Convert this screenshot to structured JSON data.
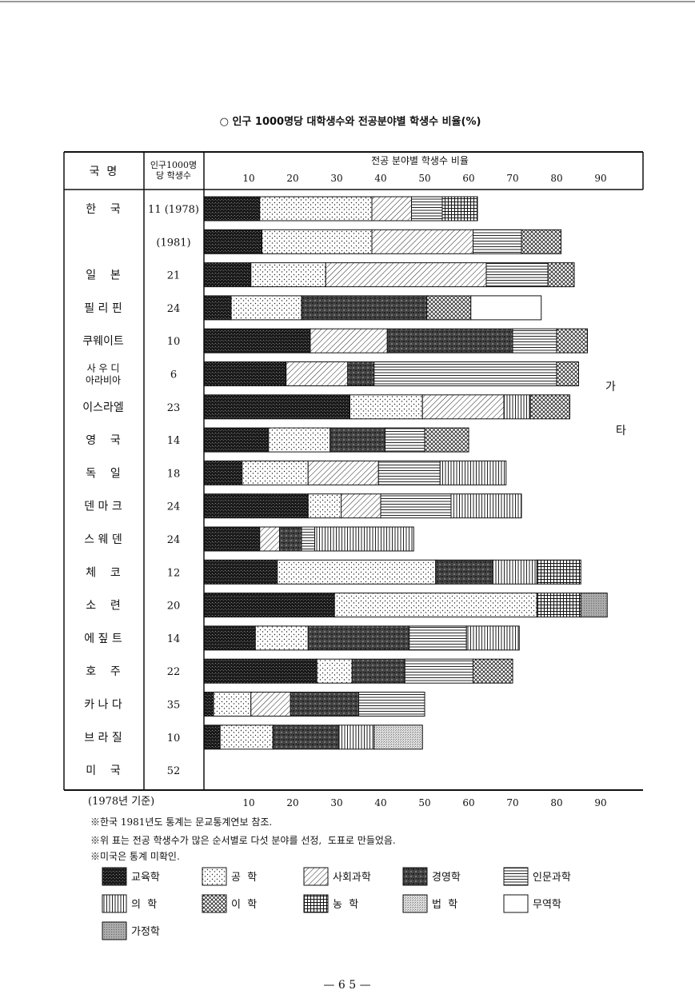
{
  "chart_data": {
    "type": "bar",
    "stacked": true,
    "orientation": "horizontal",
    "title": "○ 인구 1000명당 대학생수와 전공분야별 학생수 비율(%)",
    "header_country": "국  명",
    "header_ratio_line1": "인구1000명",
    "header_ratio_line2": "당 학생수",
    "header_fields": "전공 분야별 학생수 비율",
    "xlim": [
      0,
      93
    ],
    "xticks": [
      10,
      20,
      30,
      40,
      50,
      60,
      70,
      80,
      90
    ],
    "side_label_1": "가",
    "side_label_2": "타",
    "series": [
      {
        "key": "edu",
        "name": "교육학",
        "pattern": "dense"
      },
      {
        "key": "eng",
        "name": "공  학",
        "pattern": "dots"
      },
      {
        "key": "soc",
        "name": "사회과학",
        "pattern": "diag"
      },
      {
        "key": "bus",
        "name": "경영학",
        "pattern": "mottled"
      },
      {
        "key": "hum",
        "name": "인문과학",
        "pattern": "hlines"
      },
      {
        "key": "med",
        "name": "의  학",
        "pattern": "vlines"
      },
      {
        "key": "sci",
        "name": "이  학",
        "pattern": "cross"
      },
      {
        "key": "agr",
        "name": "농  학",
        "pattern": "grid"
      },
      {
        "key": "law",
        "name": "법  학",
        "pattern": "fine"
      },
      {
        "key": "trd",
        "name": "무역학",
        "pattern": "white"
      },
      {
        "key": "home",
        "name": "가정학",
        "pattern": "gray"
      }
    ],
    "rows": [
      {
        "country": "한    국",
        "ratio": "11 (1978)",
        "segments": [
          [
            "edu",
            12.5
          ],
          [
            "eng",
            25.5
          ],
          [
            "soc",
            9
          ],
          [
            "hum",
            7
          ],
          [
            "agr",
            8
          ]
        ]
      },
      {
        "country": "",
        "ratio": "(1981)",
        "segments": [
          [
            "edu",
            13
          ],
          [
            "eng",
            25
          ],
          [
            "soc",
            23
          ],
          [
            "hum",
            11
          ],
          [
            "sci",
            9
          ]
        ]
      },
      {
        "country": "일    본",
        "ratio": "21",
        "segments": [
          [
            "edu",
            10.5
          ],
          [
            "eng",
            17
          ],
          [
            "soc",
            36.5
          ],
          [
            "hum",
            14
          ],
          [
            "sci",
            6
          ]
        ]
      },
      {
        "country": "필 리 핀",
        "ratio": "24",
        "segments": [
          [
            "edu",
            6
          ],
          [
            "eng",
            16
          ],
          [
            "bus",
            28.5
          ],
          [
            "sci",
            10
          ],
          [
            "trd",
            16
          ]
        ]
      },
      {
        "country": "쿠웨이트",
        "ratio": "10",
        "segments": [
          [
            "edu",
            24
          ],
          [
            "soc",
            17.5
          ],
          [
            "bus",
            28.5
          ],
          [
            "hum",
            10
          ],
          [
            "sci",
            7
          ]
        ]
      },
      {
        "country": "사 우 디 아라비아",
        "ratio": "6",
        "segments": [
          [
            "edu",
            18.5
          ],
          [
            "soc",
            14
          ],
          [
            "bus",
            6
          ],
          [
            "hum",
            41.5
          ],
          [
            "sci",
            5
          ]
        ]
      },
      {
        "country": "이스라엘",
        "ratio": "23",
        "segments": [
          [
            "edu",
            33
          ],
          [
            "eng",
            16.5
          ],
          [
            "soc",
            18.5
          ],
          [
            "med",
            6
          ],
          [
            "sci",
            9
          ]
        ]
      },
      {
        "country": "영    국",
        "ratio": "14",
        "segments": [
          [
            "edu",
            14.5
          ],
          [
            "eng",
            14
          ],
          [
            "bus",
            12.5
          ],
          [
            "hum",
            9
          ],
          [
            "sci",
            10
          ]
        ]
      },
      {
        "country": "독    일",
        "ratio": "18",
        "segments": [
          [
            "edu",
            8.5
          ],
          [
            "eng",
            15
          ],
          [
            "soc",
            16
          ],
          [
            "hum",
            14
          ],
          [
            "med",
            15
          ]
        ]
      },
      {
        "country": "덴 마 크",
        "ratio": "24",
        "segments": [
          [
            "edu",
            23.5
          ],
          [
            "eng",
            7.5
          ],
          [
            "soc",
            9
          ],
          [
            "hum",
            16
          ],
          [
            "med",
            16
          ]
        ]
      },
      {
        "country": "스 웨 덴",
        "ratio": "24",
        "segments": [
          [
            "edu",
            12.5
          ],
          [
            "soc",
            4.5
          ],
          [
            "bus",
            5
          ],
          [
            "hum",
            3
          ],
          [
            "med",
            22.5
          ]
        ]
      },
      {
        "country": "체    코",
        "ratio": "12",
        "segments": [
          [
            "edu",
            16.5
          ],
          [
            "eng",
            36
          ],
          [
            "bus",
            13
          ],
          [
            "med",
            10
          ],
          [
            "agr",
            10
          ]
        ]
      },
      {
        "country": "소    련",
        "ratio": "20",
        "segments": [
          [
            "edu",
            29.5
          ],
          [
            "eng",
            46
          ],
          [
            "agr",
            10
          ],
          [
            "home",
            6
          ]
        ]
      },
      {
        "country": "에 짚 트",
        "ratio": "14",
        "segments": [
          [
            "edu",
            11.5
          ],
          [
            "eng",
            12
          ],
          [
            "bus",
            23
          ],
          [
            "hum",
            13
          ],
          [
            "med",
            12
          ]
        ]
      },
      {
        "country": "호    주",
        "ratio": "22",
        "segments": [
          [
            "edu",
            25.5
          ],
          [
            "eng",
            8
          ],
          [
            "bus",
            12
          ],
          [
            "hum",
            15.5
          ],
          [
            "sci",
            9
          ]
        ]
      },
      {
        "country": "카 나 다",
        "ratio": "35",
        "segments": [
          [
            "edu",
            2
          ],
          [
            "eng",
            8.5
          ],
          [
            "soc",
            9
          ],
          [
            "bus",
            15.5
          ],
          [
            "hum",
            15
          ]
        ]
      },
      {
        "country": "브 라 질",
        "ratio": "10",
        "segments": [
          [
            "edu",
            3.5
          ],
          [
            "eng",
            12
          ],
          [
            "bus",
            15
          ],
          [
            "med",
            8
          ],
          [
            "law",
            11
          ]
        ]
      },
      {
        "country": "미    국",
        "ratio": "52",
        "segments": []
      }
    ]
  },
  "footer": {
    "basis": "(1978년 기준)",
    "note1": "※한국 1981년도 통계는 문교통계연보 참조.",
    "note2": "※위 표는 전공 학생수가 많은 순서별로 다섯 분야를 선정,  도표로 만들었음.",
    "note3": "※미국은 통계 미확인."
  },
  "page_number": "— 6 5 —"
}
